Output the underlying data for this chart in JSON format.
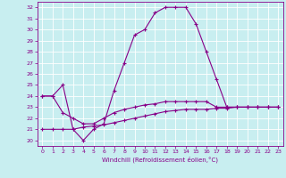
{
  "xlabel": "Windchill (Refroidissement éolien,°C)",
  "x": [
    0,
    1,
    2,
    3,
    4,
    5,
    6,
    7,
    8,
    9,
    10,
    11,
    12,
    13,
    14,
    15,
    16,
    17,
    18,
    19,
    20,
    21,
    22,
    23
  ],
  "line1": [
    24.0,
    24.0,
    25.0,
    21.0,
    20.0,
    21.0,
    21.5,
    24.5,
    27.0,
    29.5,
    30.0,
    31.5,
    32.0,
    32.0,
    32.0,
    30.5,
    28.0,
    25.5,
    23.0,
    23.0,
    23.0,
    23.0,
    23.0,
    23.0
  ],
  "line2": [
    24.0,
    24.0,
    22.5,
    22.0,
    21.5,
    21.5,
    22.0,
    22.5,
    22.8,
    23.0,
    23.2,
    23.3,
    23.5,
    23.5,
    23.5,
    23.5,
    23.5,
    23.0,
    23.0,
    23.0,
    23.0,
    23.0,
    23.0,
    23.0
  ],
  "line3": [
    21.0,
    21.0,
    21.0,
    21.0,
    21.2,
    21.3,
    21.4,
    21.6,
    21.8,
    22.0,
    22.2,
    22.4,
    22.6,
    22.7,
    22.8,
    22.8,
    22.8,
    22.9,
    22.9,
    23.0,
    23.0,
    23.0,
    23.0,
    23.0
  ],
  "line_color": "#880088",
  "bg_color": "#c8eef0",
  "grid_color": "#ffffff",
  "ylim": [
    19.5,
    32.5
  ],
  "yticks": [
    20,
    21,
    22,
    23,
    24,
    25,
    26,
    27,
    28,
    29,
    30,
    31,
    32
  ],
  "xticks": [
    0,
    1,
    2,
    3,
    4,
    5,
    6,
    7,
    8,
    9,
    10,
    11,
    12,
    13,
    14,
    15,
    16,
    17,
    18,
    19,
    20,
    21,
    22,
    23
  ],
  "marker": "+"
}
